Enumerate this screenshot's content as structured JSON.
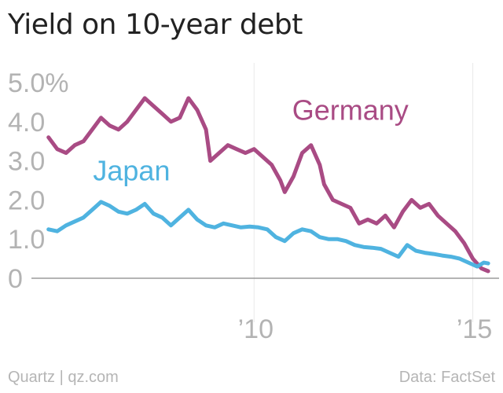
{
  "title": "Yield on 10-year debt",
  "footer": {
    "source_left": "Quartz | qz.com",
    "source_right": "Data: FactSet"
  },
  "colors": {
    "germany": "#a94b84",
    "japan": "#4fb3e0",
    "axis_text": "#b3b3b3",
    "grid": "#e9e9e9",
    "baseline": "#888888"
  },
  "chart_data": {
    "type": "line",
    "title": "Yield on 10-year debt",
    "xlabel": "",
    "ylabel": "",
    "xlim": [
      2005.0,
      2015.6
    ],
    "ylim": [
      0,
      5.0
    ],
    "x_ticks": [
      {
        "value": 2010,
        "label": "’10"
      },
      {
        "value": 2015,
        "label": "’15"
      }
    ],
    "y_ticks": [
      {
        "value": 0,
        "label": "0"
      },
      {
        "value": 1,
        "label": "1.0"
      },
      {
        "value": 2,
        "label": "2.0"
      },
      {
        "value": 3,
        "label": "3.0"
      },
      {
        "value": 4,
        "label": "4.0"
      },
      {
        "value": 5,
        "label": "5.0%"
      }
    ],
    "grid": "vertical",
    "series": [
      {
        "name": "Germany",
        "color": "#a94b84",
        "points": [
          [
            2005.3,
            3.6
          ],
          [
            2005.5,
            3.3
          ],
          [
            2005.7,
            3.2
          ],
          [
            2005.9,
            3.4
          ],
          [
            2006.1,
            3.5
          ],
          [
            2006.3,
            3.8
          ],
          [
            2006.5,
            4.1
          ],
          [
            2006.7,
            3.9
          ],
          [
            2006.9,
            3.8
          ],
          [
            2007.1,
            4.0
          ],
          [
            2007.3,
            4.3
          ],
          [
            2007.5,
            4.6
          ],
          [
            2007.7,
            4.4
          ],
          [
            2007.9,
            4.2
          ],
          [
            2008.1,
            4.0
          ],
          [
            2008.3,
            4.1
          ],
          [
            2008.5,
            4.6
          ],
          [
            2008.7,
            4.3
          ],
          [
            2008.9,
            3.8
          ],
          [
            2009.0,
            3.0
          ],
          [
            2009.2,
            3.2
          ],
          [
            2009.4,
            3.4
          ],
          [
            2009.6,
            3.3
          ],
          [
            2009.8,
            3.2
          ],
          [
            2010.0,
            3.3
          ],
          [
            2010.2,
            3.1
          ],
          [
            2010.4,
            2.9
          ],
          [
            2010.6,
            2.5
          ],
          [
            2010.7,
            2.2
          ],
          [
            2010.9,
            2.6
          ],
          [
            2011.1,
            3.2
          ],
          [
            2011.3,
            3.4
          ],
          [
            2011.5,
            2.9
          ],
          [
            2011.6,
            2.4
          ],
          [
            2011.8,
            2.0
          ],
          [
            2012.0,
            1.9
          ],
          [
            2012.2,
            1.8
          ],
          [
            2012.4,
            1.4
          ],
          [
            2012.6,
            1.5
          ],
          [
            2012.8,
            1.4
          ],
          [
            2013.0,
            1.6
          ],
          [
            2013.2,
            1.3
          ],
          [
            2013.4,
            1.7
          ],
          [
            2013.6,
            2.0
          ],
          [
            2013.8,
            1.8
          ],
          [
            2014.0,
            1.9
          ],
          [
            2014.2,
            1.6
          ],
          [
            2014.4,
            1.4
          ],
          [
            2014.6,
            1.2
          ],
          [
            2014.8,
            0.9
          ],
          [
            2015.0,
            0.5
          ],
          [
            2015.2,
            0.25
          ],
          [
            2015.35,
            0.18
          ]
        ]
      },
      {
        "name": "Japan",
        "color": "#4fb3e0",
        "points": [
          [
            2005.3,
            1.25
          ],
          [
            2005.5,
            1.2
          ],
          [
            2005.7,
            1.35
          ],
          [
            2005.9,
            1.45
          ],
          [
            2006.1,
            1.55
          ],
          [
            2006.3,
            1.75
          ],
          [
            2006.5,
            1.95
          ],
          [
            2006.7,
            1.85
          ],
          [
            2006.9,
            1.7
          ],
          [
            2007.1,
            1.65
          ],
          [
            2007.3,
            1.75
          ],
          [
            2007.5,
            1.9
          ],
          [
            2007.7,
            1.65
          ],
          [
            2007.9,
            1.55
          ],
          [
            2008.1,
            1.35
          ],
          [
            2008.3,
            1.55
          ],
          [
            2008.5,
            1.75
          ],
          [
            2008.7,
            1.5
          ],
          [
            2008.9,
            1.35
          ],
          [
            2009.1,
            1.3
          ],
          [
            2009.3,
            1.4
          ],
          [
            2009.5,
            1.35
          ],
          [
            2009.7,
            1.3
          ],
          [
            2009.9,
            1.32
          ],
          [
            2010.1,
            1.3
          ],
          [
            2010.3,
            1.25
          ],
          [
            2010.5,
            1.05
          ],
          [
            2010.7,
            0.95
          ],
          [
            2010.9,
            1.15
          ],
          [
            2011.1,
            1.25
          ],
          [
            2011.3,
            1.2
          ],
          [
            2011.5,
            1.05
          ],
          [
            2011.7,
            1.0
          ],
          [
            2011.9,
            1.0
          ],
          [
            2012.1,
            0.95
          ],
          [
            2012.3,
            0.85
          ],
          [
            2012.5,
            0.8
          ],
          [
            2012.7,
            0.78
          ],
          [
            2012.9,
            0.75
          ],
          [
            2013.1,
            0.65
          ],
          [
            2013.3,
            0.55
          ],
          [
            2013.5,
            0.85
          ],
          [
            2013.7,
            0.7
          ],
          [
            2013.9,
            0.65
          ],
          [
            2014.1,
            0.62
          ],
          [
            2014.3,
            0.58
          ],
          [
            2014.5,
            0.55
          ],
          [
            2014.7,
            0.5
          ],
          [
            2014.9,
            0.4
          ],
          [
            2015.1,
            0.3
          ],
          [
            2015.25,
            0.4
          ],
          [
            2015.35,
            0.38
          ]
        ]
      }
    ],
    "series_labels": [
      {
        "text": "Germany",
        "series": "Germany",
        "anchor": "above",
        "at_x": 2012.2,
        "at_y": 4.05
      },
      {
        "text": "Japan",
        "series": "Japan",
        "anchor": "above",
        "at_x": 2007.2,
        "at_y": 2.5
      }
    ],
    "legend": "none"
  }
}
